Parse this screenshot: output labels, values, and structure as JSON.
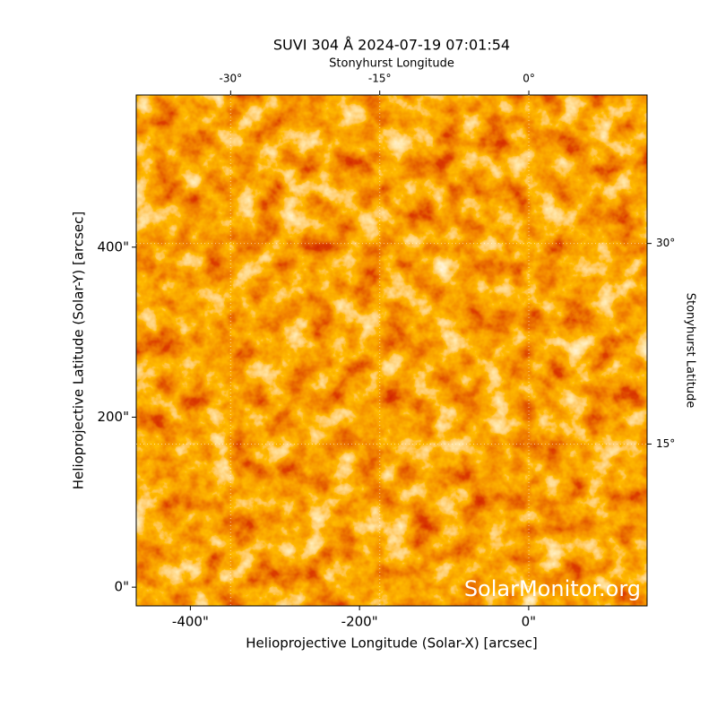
{
  "chart_data": {
    "type": "image",
    "title": "SUVI 304 Å 2024-07-19 07:01:54",
    "xlabel": "Helioprojective Longitude (Solar-X) [arcsec]",
    "ylabel": "Helioprojective Latitude (Solar-Y) [arcsec]",
    "x2label": "Stonyhurst Longitude",
    "y2label": "Stonyhurst Latitude",
    "annotation": "SolarMonitor.org",
    "xlim": [
      -464,
      140
    ],
    "ylim": [
      -22,
      579
    ],
    "xticks": [
      {
        "value": -400,
        "label": "-400\""
      },
      {
        "value": -200,
        "label": "-200\""
      },
      {
        "value": 0,
        "label": "0\""
      }
    ],
    "yticks": [
      {
        "value": 0,
        "label": "0\""
      },
      {
        "value": 200,
        "label": "200\""
      },
      {
        "value": 400,
        "label": "400\""
      }
    ],
    "x2lim": [
      -39.5,
      11.9
    ],
    "x2ticks": [
      {
        "value": -30,
        "label": "-30°"
      },
      {
        "value": -15,
        "label": "-15°"
      },
      {
        "value": 0,
        "label": "0°"
      }
    ],
    "y2lim": [
      2.9,
      41.1
    ],
    "y2ticks": [
      {
        "value": 15,
        "label": "15°"
      },
      {
        "value": 30,
        "label": "30°"
      }
    ],
    "grid": true
  }
}
